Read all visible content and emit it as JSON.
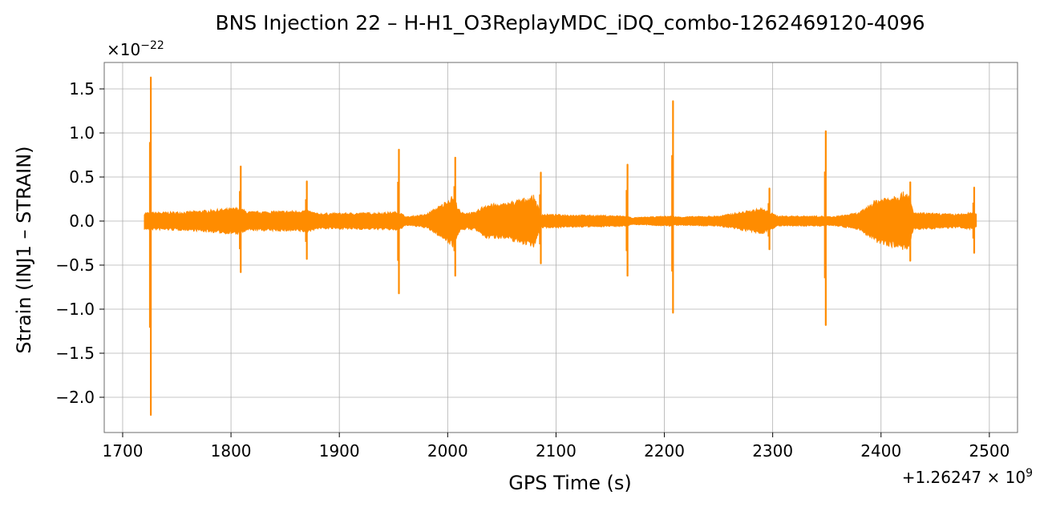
{
  "chart_data": {
    "type": "line",
    "title": "BNS Injection 22 – H-H1_O3ReplayMDC_iDQ_combo-1262469120-4096",
    "xlabel": "GPS Time (s)",
    "ylabel": "Strain (INJ1 – STRAIN)",
    "y_scale_text": "×10",
    "y_scale_exp": "−22",
    "x_offset_text": "+1.26247 × 10",
    "x_offset_exp": "9",
    "xlim": [
      1683,
      2526
    ],
    "ylim": [
      -2.4,
      1.8
    ],
    "x_ticks": [
      1700,
      1800,
      1900,
      2000,
      2100,
      2200,
      2300,
      2400,
      2500
    ],
    "x_tick_labels": [
      "1700",
      "1800",
      "1900",
      "2000",
      "2100",
      "2200",
      "2300",
      "2400",
      "2500"
    ],
    "y_ticks": [
      1.5,
      1.0,
      0.5,
      0.0,
      -0.5,
      -1.0,
      -1.5,
      -2.0
    ],
    "y_tick_labels": [
      "1.5",
      "1.0",
      "0.5",
      "0.0",
      "−0.5",
      "−1.0",
      "−1.5",
      "−2.0"
    ],
    "grid": true,
    "series": [
      {
        "color": "#ff8c00",
        "x_range": [
          1720,
          2488
        ],
        "noise_envelope": [
          [
            1720,
            0.1
          ],
          [
            1760,
            0.11
          ],
          [
            1800,
            0.15
          ],
          [
            1808,
            0.16
          ],
          [
            1815,
            0.11
          ],
          [
            1860,
            0.12
          ],
          [
            1870,
            0.13
          ],
          [
            1880,
            0.09
          ],
          [
            1940,
            0.1
          ],
          [
            1955,
            0.11
          ],
          [
            1962,
            0.05
          ],
          [
            1980,
            0.08
          ],
          [
            1995,
            0.2
          ],
          [
            2005,
            0.3
          ],
          [
            2012,
            0.1
          ],
          [
            2025,
            0.1
          ],
          [
            2035,
            0.2
          ],
          [
            2050,
            0.2
          ],
          [
            2065,
            0.25
          ],
          [
            2080,
            0.3
          ],
          [
            2086,
            0.08
          ],
          [
            2130,
            0.07
          ],
          [
            2165,
            0.06
          ],
          [
            2170,
            0.04
          ],
          [
            2205,
            0.06
          ],
          [
            2212,
            0.05
          ],
          [
            2250,
            0.06
          ],
          [
            2290,
            0.15
          ],
          [
            2298,
            0.1
          ],
          [
            2305,
            0.06
          ],
          [
            2345,
            0.06
          ],
          [
            2355,
            0.05
          ],
          [
            2380,
            0.1
          ],
          [
            2395,
            0.25
          ],
          [
            2410,
            0.3
          ],
          [
            2425,
            0.35
          ],
          [
            2430,
            0.1
          ],
          [
            2470,
            0.08
          ],
          [
            2485,
            0.1
          ],
          [
            2488,
            0.08
          ]
        ],
        "spikes": [
          {
            "x": 1726,
            "max": 1.63,
            "min": -2.2
          },
          {
            "x": 1809,
            "max": 0.62,
            "min": -0.58
          },
          {
            "x": 1870,
            "max": 0.45,
            "min": -0.43
          },
          {
            "x": 1955,
            "max": 0.81,
            "min": -0.82
          },
          {
            "x": 2007,
            "max": 0.72,
            "min": -0.62
          },
          {
            "x": 2086,
            "max": 0.55,
            "min": -0.48
          },
          {
            "x": 2166,
            "max": 0.64,
            "min": -0.62
          },
          {
            "x": 2208,
            "max": 1.36,
            "min": -1.04
          },
          {
            "x": 2297,
            "max": 0.37,
            "min": -0.32
          },
          {
            "x": 2349,
            "max": 1.02,
            "min": -1.18
          },
          {
            "x": 2427,
            "max": 0.44,
            "min": -0.45
          },
          {
            "x": 2486,
            "max": 0.38,
            "min": -0.36
          }
        ]
      }
    ]
  }
}
